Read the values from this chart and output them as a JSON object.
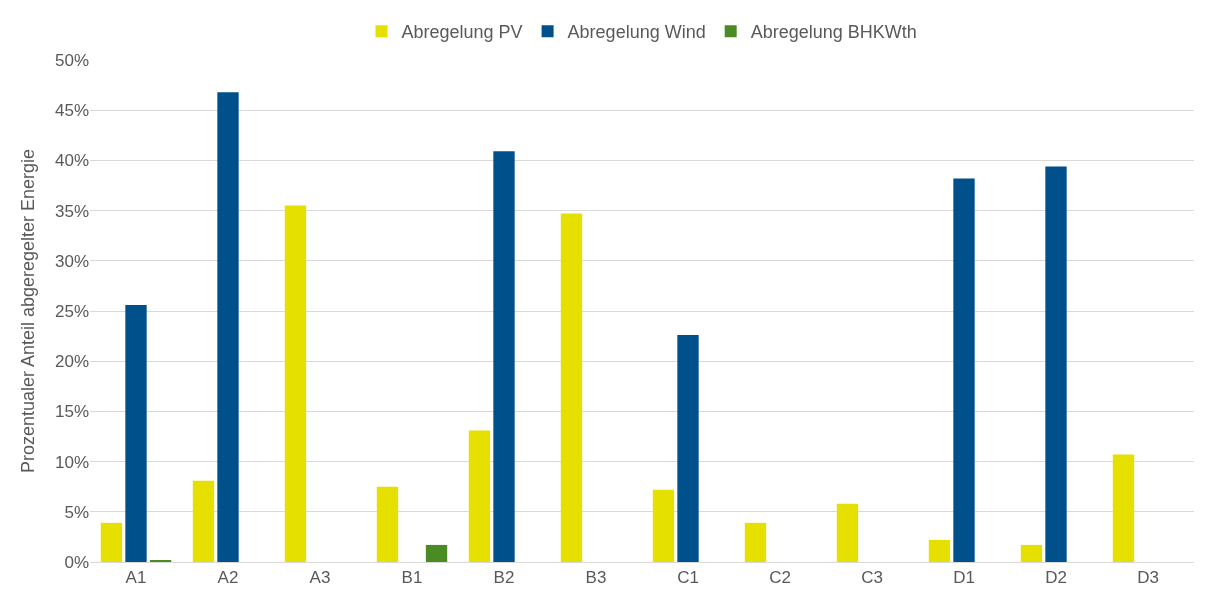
{
  "chart_data": {
    "type": "bar",
    "ylabel": "Prozentualer Anteil abgeregelter Energie",
    "categories": [
      "A1",
      "A2",
      "A3",
      "B1",
      "B2",
      "B3",
      "C1",
      "C2",
      "C3",
      "D1",
      "D2",
      "D3"
    ],
    "series": [
      {
        "name": "Abregelung PV",
        "color": "#e6e000",
        "values": [
          3.9,
          8.1,
          35.5,
          7.5,
          13.1,
          34.7,
          7.2,
          3.9,
          5.8,
          2.2,
          1.7,
          10.7
        ]
      },
      {
        "name": "Abregelung Wind",
        "color": "#00508c",
        "values": [
          25.6,
          46.8,
          0,
          0,
          40.9,
          0,
          22.6,
          0,
          0,
          38.2,
          39.4,
          0
        ]
      },
      {
        "name": "Abregelung BHKWth",
        "color": "#4a8c23",
        "values": [
          0.2,
          0,
          0,
          1.7,
          0,
          0,
          0,
          0,
          0,
          0,
          0,
          0
        ]
      }
    ],
    "ylim": [
      0,
      50
    ],
    "yticks": [
      {
        "value": 0,
        "label": "0%"
      },
      {
        "value": 5,
        "label": "5%"
      },
      {
        "value": 10,
        "label": "10%"
      },
      {
        "value": 15,
        "label": "15%"
      },
      {
        "value": 20,
        "label": "20%"
      },
      {
        "value": 25,
        "label": "25%"
      },
      {
        "value": 30,
        "label": "30%"
      },
      {
        "value": 35,
        "label": "35%"
      },
      {
        "value": 40,
        "label": "40%"
      },
      {
        "value": 45,
        "label": "45%"
      },
      {
        "value": 50,
        "label": "50%"
      }
    ],
    "grid": "y",
    "legend": "top"
  }
}
